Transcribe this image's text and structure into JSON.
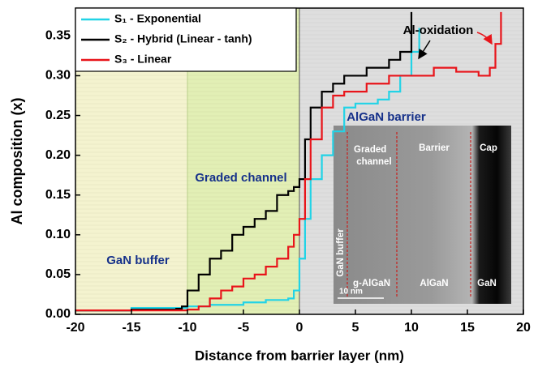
{
  "chart_data": {
    "type": "line",
    "x_label": "Distance from barrier layer (nm)",
    "y_label": "Al composition (x)",
    "xlim": [
      -20,
      20
    ],
    "ylim": [
      0,
      0.385
    ],
    "xticks": [
      -20,
      -15,
      -10,
      -5,
      0,
      5,
      10,
      15,
      20
    ],
    "yticks": [
      {
        "value": 0,
        "label": "0.00"
      },
      {
        "value": 0.05,
        "label": "0.05"
      },
      {
        "value": 0.1,
        "label": "0.10"
      },
      {
        "value": 0.15,
        "label": "0.15"
      },
      {
        "value": 0.2,
        "label": "0.20"
      },
      {
        "value": 0.25,
        "label": "0.25"
      },
      {
        "value": 0.3,
        "label": "0.30"
      },
      {
        "value": 0.35,
        "label": "0.35"
      }
    ],
    "regions": [
      {
        "label": "GaN buffer",
        "x": [
          -20,
          -10
        ],
        "color": "#f4f3cf"
      },
      {
        "label": "Graded channel",
        "x": [
          -10,
          0
        ],
        "color": "#e2efb5"
      },
      {
        "label": "AlGaN barrier",
        "x": [
          0,
          20
        ],
        "color": "#dedede"
      }
    ],
    "annotation": "Al-oxidation",
    "series": [
      {
        "name": "S₁ - Exponential",
        "color": "#22d3e6",
        "x": [
          -20,
          -15,
          -10,
          -8,
          -5,
          -3,
          -1,
          -0.5,
          0,
          0.5,
          1,
          2,
          3,
          4,
          5,
          7,
          8,
          9,
          10,
          10.7
        ],
        "values": [
          0.005,
          0.008,
          0.01,
          0.012,
          0.015,
          0.018,
          0.02,
          0.03,
          0.07,
          0.12,
          0.17,
          0.2,
          0.23,
          0.26,
          0.265,
          0.27,
          0.28,
          0.3,
          0.33,
          0.36
        ]
      },
      {
        "name": "S₂ - Hybrid (Linear - tanh)",
        "color": "#000000",
        "x": [
          -20,
          -15,
          -11,
          -10.5,
          -10,
          -9,
          -8,
          -7,
          -6,
          -5,
          -4,
          -3,
          -2,
          -1,
          -0.5,
          0,
          0.5,
          1,
          2,
          3,
          4,
          6,
          8,
          9,
          10
        ],
        "values": [
          0.005,
          0.006,
          0.007,
          0.01,
          0.03,
          0.05,
          0.07,
          0.08,
          0.1,
          0.11,
          0.12,
          0.13,
          0.15,
          0.155,
          0.16,
          0.17,
          0.22,
          0.26,
          0.28,
          0.29,
          0.3,
          0.31,
          0.32,
          0.33,
          0.38
        ]
      },
      {
        "name": "S₃ - Linear",
        "color": "#e8141a",
        "x": [
          -20,
          -15,
          -10,
          -9,
          -8,
          -7,
          -6,
          -5,
          -4,
          -3,
          -2,
          -1,
          -0.5,
          0,
          0.5,
          1,
          2,
          3,
          4,
          6,
          8,
          10,
          12,
          14,
          16,
          17,
          17.5,
          18
        ],
        "values": [
          0.005,
          0.005,
          0.006,
          0.01,
          0.02,
          0.03,
          0.035,
          0.045,
          0.05,
          0.06,
          0.07,
          0.085,
          0.1,
          0.12,
          0.17,
          0.22,
          0.26,
          0.275,
          0.28,
          0.29,
          0.3,
          0.3,
          0.31,
          0.305,
          0.3,
          0.31,
          0.34,
          0.38
        ]
      }
    ],
    "legend": "upper left",
    "inset_labels": [
      "Graded channel",
      "Barrier",
      "Cap",
      "GaN buffer",
      "g-AlGaN",
      "AlGaN",
      "GaN",
      "10 nm"
    ]
  }
}
